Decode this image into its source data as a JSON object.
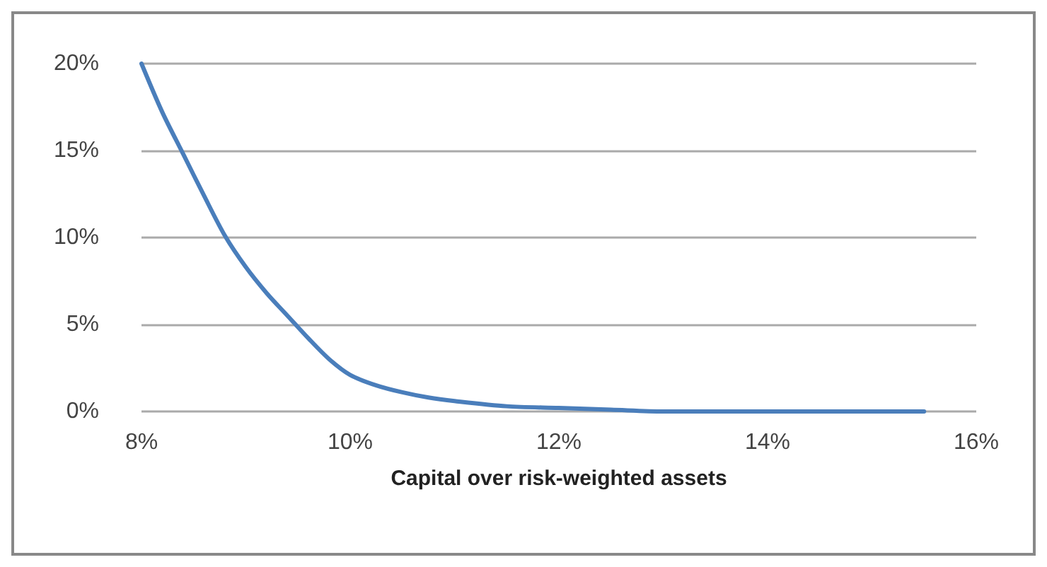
{
  "chart_data": {
    "type": "line",
    "xlabel": "Capital over risk-weighted assets",
    "x": [
      8,
      8.2,
      8.4,
      8.6,
      8.8,
      9,
      9.2,
      9.4,
      9.6,
      9.8,
      10,
      10.25,
      10.5,
      10.75,
      11,
      11.5,
      12,
      12.5,
      13,
      14,
      15,
      15.5
    ],
    "series": [
      {
        "color": "#4a7ebb",
        "values": [
          20,
          17.2,
          14.8,
          12.4,
          10.1,
          8.3,
          6.8,
          5.5,
          4.2,
          3.0,
          2.1,
          1.5,
          1.1,
          0.8,
          0.6,
          0.3,
          0.2,
          0.1,
          0,
          0,
          0,
          0
        ]
      }
    ],
    "xlim": [
      8,
      16
    ],
    "xticks": [
      {
        "value": 8,
        "label": "8%"
      },
      {
        "value": 10,
        "label": "10%"
      },
      {
        "value": 12,
        "label": "12%"
      },
      {
        "value": 14,
        "label": "14%"
      },
      {
        "value": 16,
        "label": "16%"
      }
    ],
    "ylim": [
      0,
      20
    ],
    "yticks": [
      {
        "value": 0,
        "label": "0%"
      },
      {
        "value": 5,
        "label": "5%"
      },
      {
        "value": 10,
        "label": "10%"
      },
      {
        "value": 15,
        "label": "15%"
      },
      {
        "value": 20,
        "label": "20%"
      }
    ],
    "grid": "y",
    "marker": "none",
    "line_style": "solid"
  }
}
